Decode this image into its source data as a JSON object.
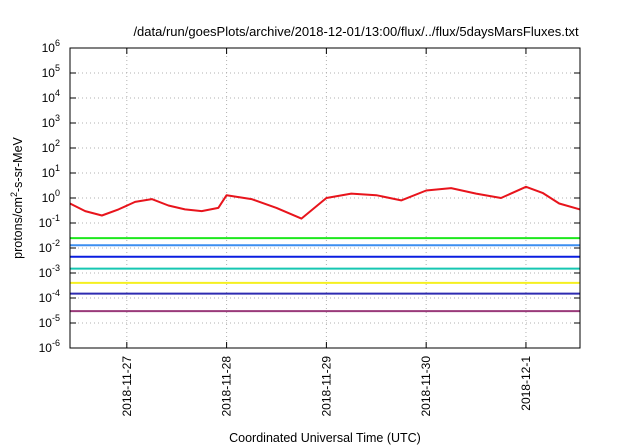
{
  "chart_data": {
    "type": "line",
    "title": "/data/run/goesPlots/archive/2018-12-01/13:00/flux/../flux/5daysMarsFluxes.txt",
    "xlabel": "Coordinated Universal Time (UTC)",
    "ylabel": "protons/cm²-s-sr-MeV",
    "yscale": "log",
    "ylim": [
      1e-06,
      1000000.0
    ],
    "xlim": [
      "2018-11-26T10:20",
      "2018-12-01T13:00"
    ],
    "grid": true,
    "legend": "none",
    "y_tick_labels": [
      {
        "value": 1e-06,
        "base": "10",
        "exp": "-6"
      },
      {
        "value": 1e-05,
        "base": "10",
        "exp": "-5"
      },
      {
        "value": 0.0001,
        "base": "10",
        "exp": "-4"
      },
      {
        "value": 0.001,
        "base": "10",
        "exp": "-3"
      },
      {
        "value": 0.01,
        "base": "10",
        "exp": "-2"
      },
      {
        "value": 0.1,
        "base": "10",
        "exp": "-1"
      },
      {
        "value": 1.0,
        "base": "10",
        "exp": "0"
      },
      {
        "value": 10.0,
        "base": "10",
        "exp": "1"
      },
      {
        "value": 100.0,
        "base": "10",
        "exp": "2"
      },
      {
        "value": 1000.0,
        "base": "10",
        "exp": "3"
      },
      {
        "value": 10000.0,
        "base": "10",
        "exp": "4"
      },
      {
        "value": 100000.0,
        "base": "10",
        "exp": "5"
      },
      {
        "value": 1000000.0,
        "base": "10",
        "exp": "6"
      }
    ],
    "x_tick_labels": [
      {
        "value": "2018-11-27",
        "label": "2018-11-27"
      },
      {
        "value": "2018-11-28",
        "label": "2018-11-28"
      },
      {
        "value": "2018-11-29",
        "label": "2018-11-29"
      },
      {
        "value": "2018-11-30",
        "label": "2018-11-30"
      },
      {
        "value": "2018-12-01",
        "label": "2018-12-1"
      }
    ],
    "series": [
      {
        "color": "#e8141c",
        "x": [
          "2018-11-26T10:20",
          "2018-11-26T14:00",
          "2018-11-26T18:00",
          "2018-11-26T22:00",
          "2018-11-27T02:00",
          "2018-11-27T06:00",
          "2018-11-27T10:00",
          "2018-11-27T14:00",
          "2018-11-27T18:00",
          "2018-11-27T22:00",
          "2018-11-28T00:00",
          "2018-11-28T06:00",
          "2018-11-28T12:00",
          "2018-11-28T18:00",
          "2018-11-29T00:00",
          "2018-11-29T06:00",
          "2018-11-29T12:00",
          "2018-11-29T18:00",
          "2018-11-30T00:00",
          "2018-11-30T06:00",
          "2018-11-30T12:00",
          "2018-11-30T18:00",
          "2018-12-01T00:00",
          "2018-12-01T04:00",
          "2018-12-01T08:00",
          "2018-12-01T13:00"
        ],
        "y": [
          0.6,
          0.3,
          0.2,
          0.35,
          0.7,
          0.9,
          0.5,
          0.35,
          0.3,
          0.4,
          1.3,
          0.9,
          0.4,
          0.15,
          1.0,
          1.5,
          1.3,
          0.8,
          2.0,
          2.5,
          1.5,
          1.0,
          2.8,
          1.6,
          0.6,
          0.35
        ]
      },
      {
        "color": "#1ee81e",
        "x": [
          "2018-11-26T10:20",
          "2018-12-01T13:00"
        ],
        "y": [
          0.025,
          0.025
        ]
      },
      {
        "color": "#3c8ef0",
        "x": [
          "2018-11-26T10:20",
          "2018-12-01T13:00"
        ],
        "y": [
          0.013,
          0.013
        ]
      },
      {
        "color": "#0a1ee0",
        "x": [
          "2018-11-26T10:20",
          "2018-12-01T13:00"
        ],
        "y": [
          0.0045,
          0.0045
        ]
      },
      {
        "color": "#17c7b2",
        "x": [
          "2018-11-26T10:20",
          "2018-12-01T13:00"
        ],
        "y": [
          0.0015,
          0.0015
        ]
      },
      {
        "color": "#f5f020",
        "x": [
          "2018-11-26T10:20",
          "2018-12-01T13:00"
        ],
        "y": [
          0.0004,
          0.0004
        ]
      },
      {
        "color": "#2e2bb0",
        "x": [
          "2018-11-26T10:20",
          "2018-12-01T13:00"
        ],
        "y": [
          0.00015,
          0.00015
        ]
      },
      {
        "color": "#9a3a7a",
        "x": [
          "2018-11-26T10:20",
          "2018-12-01T13:00"
        ],
        "y": [
          3e-05,
          3e-05
        ]
      }
    ]
  }
}
